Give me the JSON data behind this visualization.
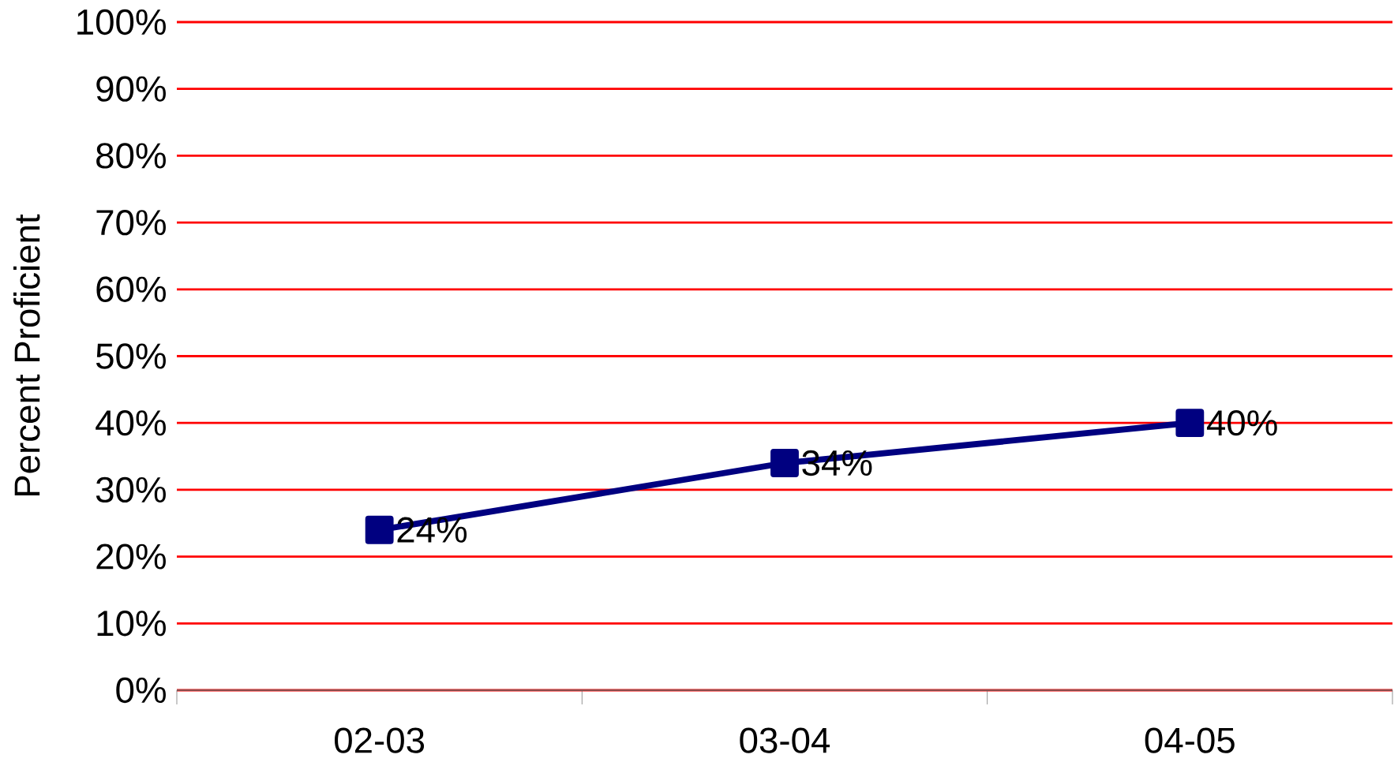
{
  "chart_data": {
    "type": "line",
    "ylabel": "Percent Proficient",
    "categories": [
      "02-03",
      "03-04",
      "04-05"
    ],
    "series": [
      {
        "color": "#000080",
        "values": [
          24,
          34,
          40
        ],
        "value_labels": [
          "24%",
          "34%",
          "40%"
        ]
      }
    ],
    "ylim": [
      0,
      100
    ],
    "yticks": [
      {
        "value": 0,
        "label": "0%"
      },
      {
        "value": 10,
        "label": "10%"
      },
      {
        "value": 20,
        "label": "20%"
      },
      {
        "value": 30,
        "label": "30%"
      },
      {
        "value": 40,
        "label": "40%"
      },
      {
        "value": 50,
        "label": "50%"
      },
      {
        "value": 60,
        "label": "60%"
      },
      {
        "value": 70,
        "label": "70%"
      },
      {
        "value": 80,
        "label": "80%"
      },
      {
        "value": 90,
        "label": "90%"
      },
      {
        "value": 100,
        "label": "100%"
      }
    ],
    "grid": "y",
    "marker": "square",
    "line_style": "solid"
  }
}
